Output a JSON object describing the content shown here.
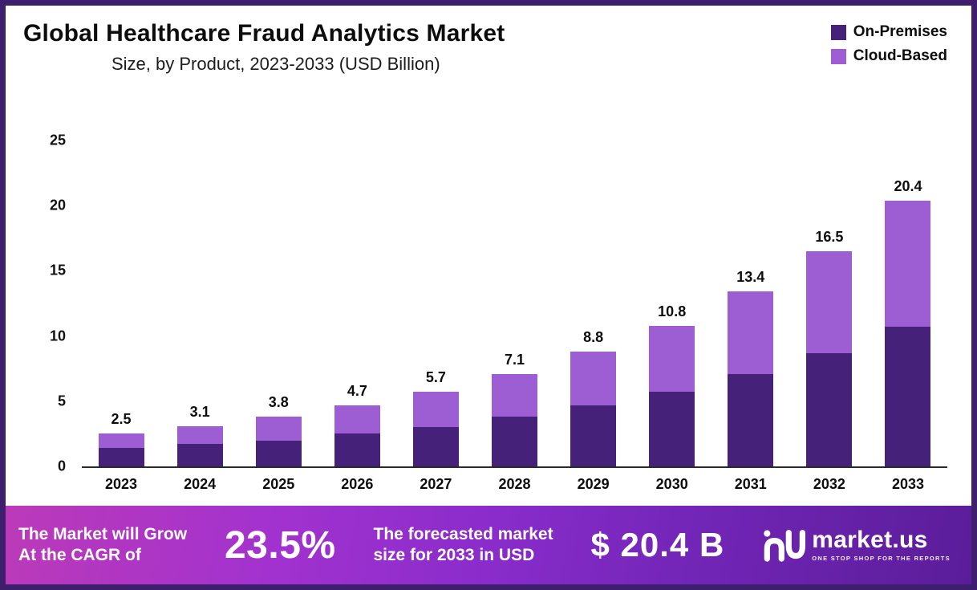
{
  "header": {
    "title": "Global Healthcare Fraud Analytics Market",
    "subtitle": "Size, by Product, 2023-2033 (USD Billion)"
  },
  "legend": [
    {
      "label": "On-Premises",
      "color": "#46217a"
    },
    {
      "label": "Cloud-Based",
      "color": "#9c5ed2"
    }
  ],
  "chart_data": {
    "type": "bar",
    "stacked": true,
    "title": "Global Healthcare Fraud Analytics Market Size, by Product, 2023-2033 (USD Billion)",
    "categories": [
      "2023",
      "2024",
      "2025",
      "2026",
      "2027",
      "2028",
      "2029",
      "2030",
      "2031",
      "2032",
      "2033"
    ],
    "series": [
      {
        "name": "On-Premises",
        "color": "#46217a",
        "values": [
          1.4,
          1.7,
          2.0,
          2.5,
          3.0,
          3.8,
          4.7,
          5.7,
          7.1,
          8.7,
          10.7
        ]
      },
      {
        "name": "Cloud-Based",
        "color": "#9c5ed2",
        "values": [
          1.1,
          1.4,
          1.8,
          2.2,
          2.7,
          3.3,
          4.1,
          5.1,
          6.3,
          7.8,
          9.7
        ]
      }
    ],
    "totals": [
      2.5,
      3.1,
      3.8,
      4.7,
      5.7,
      7.1,
      8.8,
      10.8,
      13.4,
      16.5,
      20.4
    ],
    "xlabel": "",
    "ylabel": "",
    "ylim": [
      0,
      25
    ],
    "yticks": [
      0,
      5,
      10,
      15,
      20,
      25
    ],
    "grid": false,
    "legend_position": "top-right"
  },
  "banner": {
    "left_line1": "The Market will Grow",
    "left_line2": "At the CAGR of",
    "cagr": "23.5%",
    "mid_line1": "The forecasted market",
    "mid_line2": "size for 2033 in USD",
    "value": "$ 20.4 B",
    "logo_name": "market.us",
    "logo_tagline": "ONE STOP SHOP FOR THE REPORTS"
  }
}
